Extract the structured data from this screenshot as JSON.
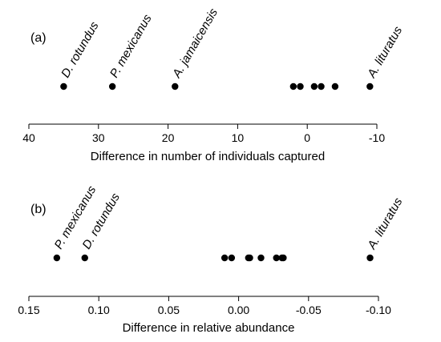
{
  "chart_data": [
    {
      "type": "scatter",
      "panel_label": "(a)",
      "xlabel": "Difference in number of individuals captured",
      "x_reversed": true,
      "xlim": [
        40,
        -10
      ],
      "xticks": [
        40,
        30,
        20,
        10,
        0,
        -10
      ],
      "tick_labels": [
        "40",
        "30",
        "20",
        "10",
        "0",
        "-10"
      ],
      "points": [
        {
          "x": 35,
          "label": "D. rotundus"
        },
        {
          "x": 28,
          "label": "P. mexicanus"
        },
        {
          "x": 19,
          "label": "A. jamaicensis"
        },
        {
          "x": 2,
          "label": ""
        },
        {
          "x": 1,
          "label": ""
        },
        {
          "x": -1,
          "label": ""
        },
        {
          "x": -2,
          "label": ""
        },
        {
          "x": -4,
          "label": ""
        },
        {
          "x": -9,
          "label": "A. lituratus"
        }
      ]
    },
    {
      "type": "scatter",
      "panel_label": "(b)",
      "xlabel": "Difference in relative abundance",
      "x_reversed": true,
      "xlim": [
        0.15,
        -0.1
      ],
      "xticks": [
        0.15,
        0.1,
        0.05,
        0,
        -0.05,
        -0.1
      ],
      "tick_labels": [
        "0.15",
        "0.10",
        "0.05",
        "0.00",
        "-0.05",
        "-0.10"
      ],
      "points": [
        {
          "x": 0.13,
          "label": "P. mexicanus"
        },
        {
          "x": 0.11,
          "label": "D. rotundus"
        },
        {
          "x": 0.01,
          "label": ""
        },
        {
          "x": 0.005,
          "label": ""
        },
        {
          "x": -0.007,
          "label": ""
        },
        {
          "x": -0.008,
          "label": ""
        },
        {
          "x": -0.016,
          "label": ""
        },
        {
          "x": -0.027,
          "label": ""
        },
        {
          "x": -0.031,
          "label": ""
        },
        {
          "x": -0.032,
          "label": ""
        },
        {
          "x": -0.094,
          "label": "A. lituratus"
        }
      ]
    }
  ]
}
